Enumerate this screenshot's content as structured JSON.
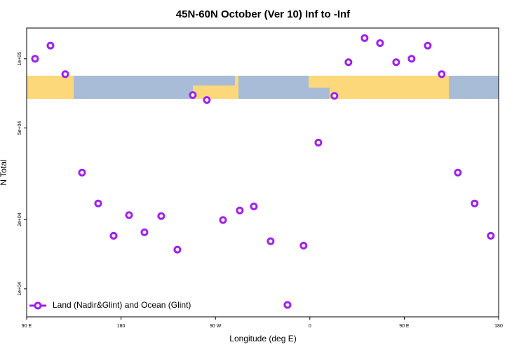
{
  "chart_data": {
    "type": "scatter",
    "title": "45N-60N October (Ver 10)   Inf to -Inf",
    "x_label": "Longitude (deg E)",
    "y_label": "N Total",
    "log_y": true,
    "legend": "lower left",
    "xlim": [
      90,
      540
    ],
    "xticks": [
      {
        "value": 90,
        "label": "90 E"
      },
      {
        "value": 180,
        "label": "180"
      },
      {
        "value": 270,
        "label": "90 W"
      },
      {
        "value": 360,
        "label": "0"
      },
      {
        "value": 450,
        "label": "90 E"
      },
      {
        "value": 540,
        "label": "180"
      }
    ],
    "ylim": [
      7550,
      136000
    ],
    "yticks": [
      {
        "value": 10000,
        "label": "1e+04"
      },
      {
        "value": 20000,
        "label": "2e+04"
      },
      {
        "value": 50000,
        "label": "5e+04"
      },
      {
        "value": 100000,
        "label": "1e+05"
      }
    ],
    "series": [
      {
        "name": "Land (Nadir&Glint) and Ocean (Glint)",
        "color": "#a020f0",
        "x": [
          98,
          112.7,
          126.8,
          142.8,
          158.2,
          172.9,
          187.6,
          202.3,
          218.3,
          233.7,
          248.4,
          261.8,
          277.2,
          293.2,
          306.6,
          322.6,
          338.7,
          354,
          368.1,
          383.4,
          396.8,
          412.2,
          426.9,
          442.3,
          457,
          472.4,
          485.7,
          501.1,
          517.1,
          532.5
        ],
        "values": [
          100000,
          114000,
          85700,
          32000,
          23500,
          17000,
          20900,
          17600,
          20700,
          14800,
          69500,
          66200,
          19900,
          21900,
          22800,
          16100,
          8510,
          15400,
          43200,
          69000,
          96600,
          123000,
          117000,
          96600,
          100000,
          114000,
          85700,
          32000,
          23500,
          17000
        ]
      }
    ]
  }
}
